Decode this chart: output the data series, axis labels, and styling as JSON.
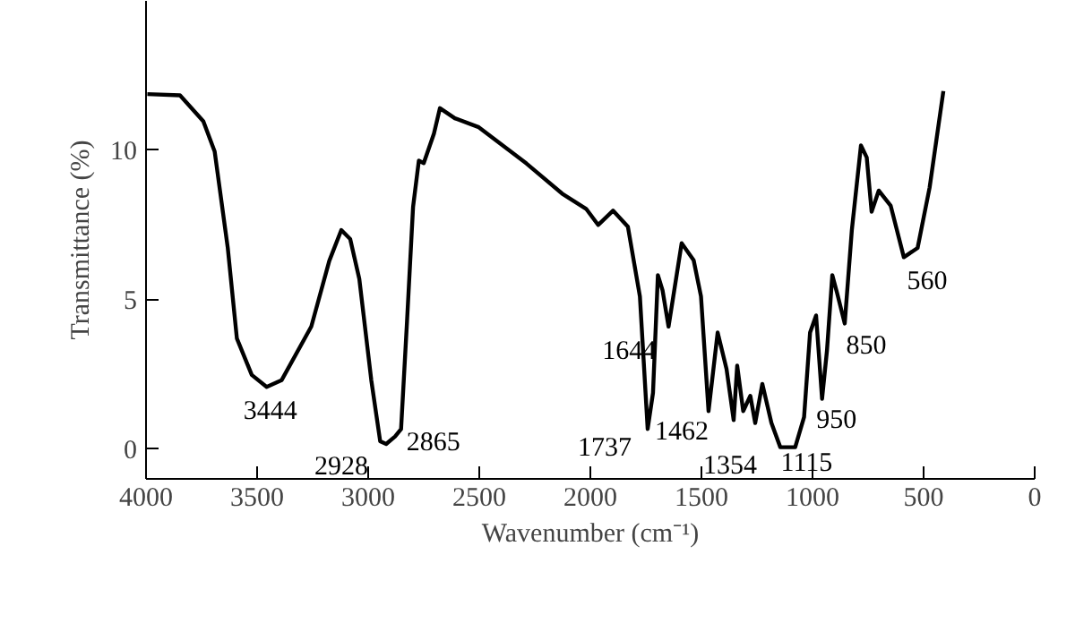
{
  "chart_data": {
    "type": "line",
    "xlabel": "Wavenumber (cm⁻¹)",
    "ylabel": "Transmittance (%)",
    "xlim": [
      4000,
      0
    ],
    "ylim": [
      -1,
      15
    ],
    "xticks": [
      4000,
      3500,
      3000,
      2500,
      2000,
      1500,
      1000,
      500,
      0
    ],
    "yticks": [
      0,
      5,
      10
    ],
    "grid": false,
    "marker": "none",
    "line_style": "solid",
    "series": [
      {
        "color": "#000000",
        "x": [
          3994,
          3847,
          3742,
          3691,
          3632,
          3591,
          3524,
          3457,
          3390,
          3256,
          3175,
          3121,
          3081,
          3040,
          2986,
          2946,
          2919,
          2879,
          2852,
          2825,
          2798,
          2772,
          2750,
          2704,
          2677,
          2610,
          2502,
          2288,
          2127,
          2019,
          1965,
          1898,
          1831,
          1777,
          1742,
          1718,
          1696,
          1675,
          1648,
          1589,
          1535,
          1502,
          1468,
          1427,
          1387,
          1355,
          1339,
          1312,
          1280,
          1258,
          1226,
          1185,
          1145,
          1078,
          1038,
          1011,
          984,
          957,
          935,
          911,
          889,
          855,
          823,
          782,
          756,
          734,
          702,
          648,
          589,
          527,
          473,
          411
        ],
        "values": [
          11.88,
          11.84,
          10.97,
          9.96,
          6.73,
          3.7,
          2.48,
          2.08,
          2.3,
          4.1,
          6.3,
          7.33,
          7.03,
          5.7,
          2.3,
          0.26,
          0.17,
          0.42,
          0.67,
          4.3,
          8.1,
          9.65,
          9.57,
          10.56,
          11.41,
          11.07,
          10.77,
          9.56,
          8.55,
          8.04,
          7.5,
          7.98,
          7.44,
          5.11,
          0.67,
          1.88,
          5.82,
          5.31,
          4.1,
          6.89,
          6.32,
          5.11,
          1.27,
          3.9,
          2.68,
          0.97,
          2.79,
          1.27,
          1.78,
          0.87,
          2.18,
          0.87,
          0.06,
          0.06,
          1.07,
          3.9,
          4.47,
          1.68,
          3.29,
          5.82,
          5.21,
          4.2,
          7.33,
          10.16,
          9.76,
          7.94,
          8.65,
          8.14,
          6.42,
          6.73,
          8.75,
          11.98
        ]
      }
    ],
    "annotations": [
      {
        "text": "3444",
        "x": 3457,
        "y": 2.08
      },
      {
        "text": "2928",
        "x": 2919,
        "y": 0.17
      },
      {
        "text": "2865",
        "x": 2852,
        "y": 0.67
      },
      {
        "text": "1737",
        "x": 1742,
        "y": 0.67
      },
      {
        "text": "1644",
        "x": 1648,
        "y": 4.1
      },
      {
        "text": "1462",
        "x": 1468,
        "y": 1.27
      },
      {
        "text": "1354",
        "x": 1355,
        "y": 0.97
      },
      {
        "text": "1115",
        "x": 1115,
        "y": 0.06
      },
      {
        "text": "950",
        "x": 957,
        "y": 1.68
      },
      {
        "text": "850",
        "x": 855,
        "y": 4.2
      },
      {
        "text": "560",
        "x": 589,
        "y": 6.42
      }
    ]
  }
}
